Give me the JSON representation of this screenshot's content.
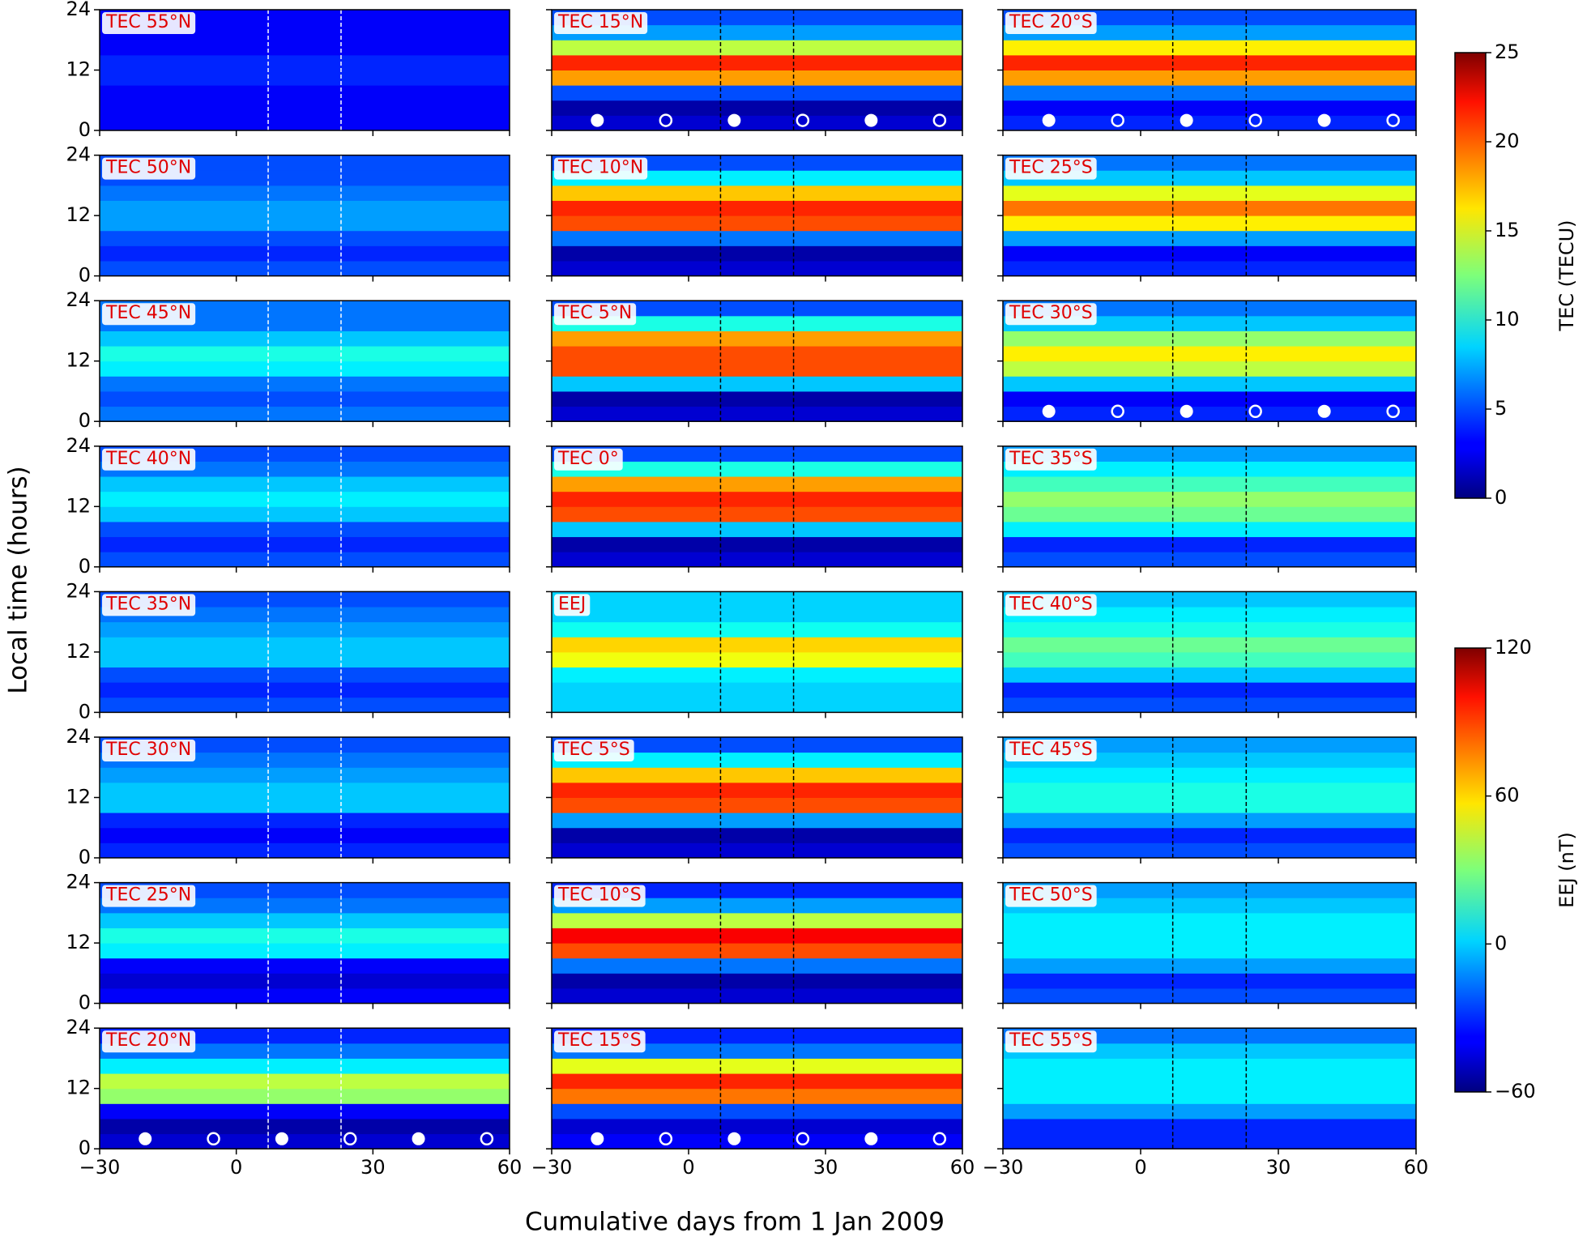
{
  "chart_data": {
    "type": "heatmap",
    "xlabel": "Cumulative days from 1 Jan 2009",
    "ylabel": "Local time (hours)",
    "xlim": [
      -30,
      60
    ],
    "xticks": [
      {
        "value": -30,
        "label": "−30"
      },
      0,
      30,
      60
    ],
    "ylim": [
      0,
      24
    ],
    "yticks": [
      0,
      12,
      24
    ],
    "y_bins": [
      0,
      3,
      6,
      9,
      12,
      15,
      18,
      21,
      24
    ],
    "event_days": [
      7,
      23
    ],
    "moon_markers": {
      "hour": 2,
      "full": [
        -20,
        10,
        40
      ],
      "new": [
        -5,
        25,
        55
      ]
    },
    "colorbars": [
      {
        "label": "TEC (TECU)",
        "lim": [
          0,
          25
        ],
        "ticks": [
          0,
          5,
          10,
          15,
          20,
          25
        ]
      },
      {
        "label": "EEJ (nT)",
        "lim": [
          -60,
          120
        ],
        "ticks": [
          {
            "value": -60,
            "label": "−60"
          },
          0,
          60,
          120
        ]
      }
    ],
    "columns": [
      [
        {
          "label": "TEC 55°N",
          "colorbar": 0,
          "values": [
            3,
            3,
            3,
            4,
            4,
            3,
            3,
            3
          ]
        },
        {
          "label": "TEC 50°N",
          "colorbar": 0,
          "values": [
            5,
            4,
            5,
            7,
            7,
            6,
            5,
            5
          ]
        },
        {
          "label": "TEC 45°N",
          "colorbar": 0,
          "values": [
            6,
            5,
            6,
            9,
            10,
            8,
            6,
            6
          ]
        },
        {
          "label": "TEC 40°N",
          "colorbar": 0,
          "values": [
            5,
            4,
            5,
            8,
            9,
            8,
            6,
            5
          ]
        },
        {
          "label": "TEC 35°N",
          "colorbar": 0,
          "values": [
            5,
            4,
            5,
            8,
            8,
            7,
            6,
            5
          ]
        },
        {
          "label": "TEC 30°N",
          "colorbar": 0,
          "values": [
            4,
            3,
            4,
            8,
            8,
            7,
            6,
            5
          ]
        },
        {
          "label": "TEC 25°N",
          "colorbar": 0,
          "values": [
            3,
            2,
            3,
            9,
            10,
            8,
            6,
            5
          ]
        },
        {
          "label": "TEC 20°N",
          "colorbar": 0,
          "moons": true,
          "values": [
            2,
            1,
            3,
            13,
            14,
            9,
            6,
            4
          ]
        }
      ],
      [
        {
          "label": "TEC 15°N",
          "colorbar": 0,
          "moons": true,
          "values": [
            2,
            1,
            5,
            18,
            21,
            14,
            7,
            5
          ]
        },
        {
          "label": "TEC 10°N",
          "colorbar": 0,
          "values": [
            2,
            1,
            6,
            20,
            21,
            17,
            9,
            5
          ]
        },
        {
          "label": "TEC 5°N",
          "colorbar": 0,
          "values": [
            2,
            1,
            8,
            20,
            20,
            18,
            10,
            5
          ]
        },
        {
          "label": "TEC 0°",
          "colorbar": 0,
          "values": [
            2,
            1,
            8,
            20,
            21,
            18,
            10,
            5
          ]
        },
        {
          "label": "EEJ",
          "colorbar": 1,
          "values": [
            0,
            0,
            5,
            50,
            60,
            10,
            0,
            0
          ]
        },
        {
          "label": "TEC 5°S",
          "colorbar": 0,
          "values": [
            2,
            1,
            7,
            20,
            21,
            17,
            9,
            5
          ]
        },
        {
          "label": "TEC 10°S",
          "colorbar": 0,
          "values": [
            2,
            1,
            6,
            20,
            22,
            14,
            7,
            4
          ]
        },
        {
          "label": "TEC 15°S",
          "colorbar": 0,
          "moons": true,
          "values": [
            3,
            2,
            5,
            19,
            21,
            15,
            6,
            4
          ]
        }
      ],
      [
        {
          "label": "TEC 20°S",
          "colorbar": 0,
          "moons": true,
          "values": [
            4,
            3,
            6,
            18,
            21,
            16,
            7,
            5
          ]
        },
        {
          "label": "TEC 25°S",
          "colorbar": 0,
          "values": [
            4,
            3,
            7,
            16,
            19,
            15,
            8,
            6
          ]
        },
        {
          "label": "TEC 30°S",
          "colorbar": 0,
          "moons": true,
          "values": [
            4,
            3,
            8,
            14,
            16,
            13,
            8,
            6
          ]
        },
        {
          "label": "TEC 35°S",
          "colorbar": 0,
          "values": [
            5,
            4,
            9,
            12,
            13,
            11,
            9,
            7
          ]
        },
        {
          "label": "TEC 40°S",
          "colorbar": 0,
          "values": [
            5,
            4,
            8,
            11,
            12,
            10,
            9,
            8
          ]
        },
        {
          "label": "TEC 45°S",
          "colorbar": 0,
          "values": [
            5,
            4,
            7,
            10,
            10,
            9,
            8,
            7
          ]
        },
        {
          "label": "TEC 50°S",
          "colorbar": 0,
          "values": [
            5,
            4,
            7,
            9,
            9,
            9,
            8,
            7
          ]
        },
        {
          "label": "TEC 55°S",
          "colorbar": 0,
          "values": [
            4,
            4,
            7,
            9,
            9,
            9,
            8,
            6
          ]
        }
      ]
    ]
  }
}
